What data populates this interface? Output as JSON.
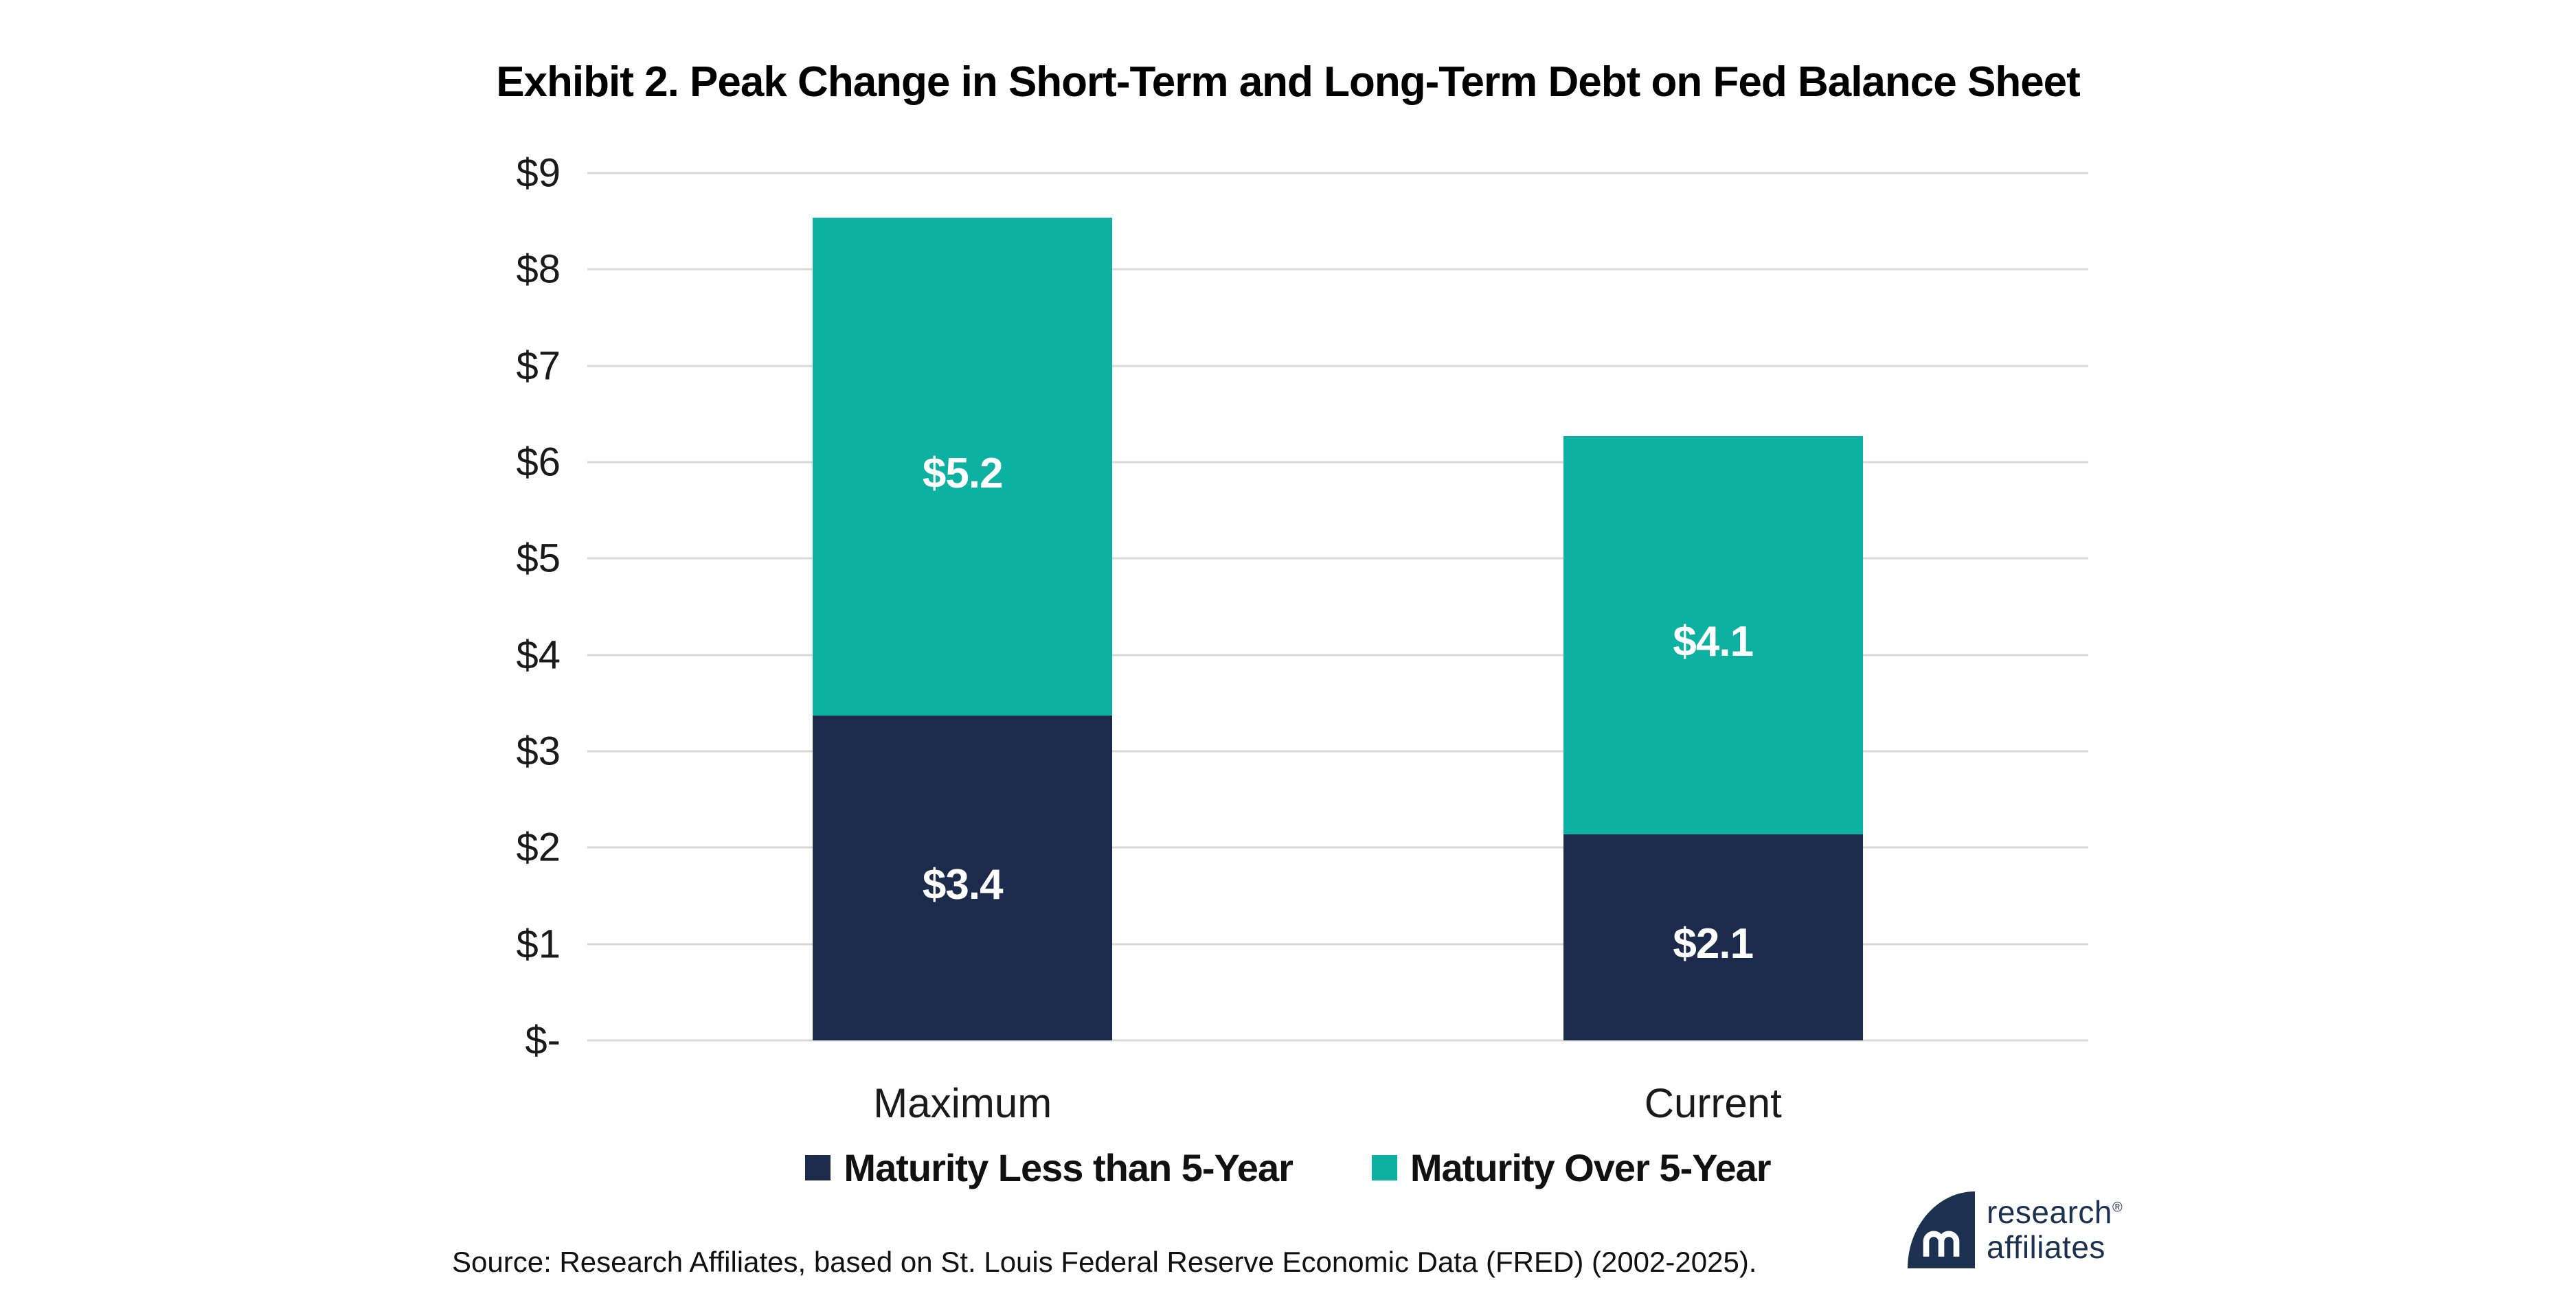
{
  "title": "Exhibit 2. Peak Change in Short-Term and Long-Term Debt on Fed Balance Sheet",
  "chart_data": {
    "type": "bar",
    "stacked": true,
    "title": "Exhibit 2. Peak Change in Short-Term and Long-Term Debt on Fed Balance Sheet",
    "categories": [
      "Maximum",
      "Current"
    ],
    "series": [
      {
        "name": "Maturity Less than 5-Year",
        "color": "#1c2b4c",
        "values": [
          3.37,
          2.14
        ],
        "labels": [
          "$3.4",
          "$2.1"
        ]
      },
      {
        "name": "Maturity Over 5-Year",
        "color": "#0db1a2",
        "values": [
          5.17,
          4.13
        ],
        "labels": [
          "$5.2",
          "$4.1"
        ]
      }
    ],
    "xlabel": "",
    "ylabel": "",
    "ylim": [
      0,
      9
    ],
    "yticks": [
      "$9",
      "$8",
      "$7",
      "$6",
      "$5",
      "$4",
      "$3",
      "$2",
      "$1",
      "$-"
    ],
    "grid": true,
    "legend_position": "bottom"
  },
  "colors": {
    "navy": "#1c2b4c",
    "teal": "#0db1a2",
    "gridline": "#d9d9d9",
    "logo_navy": "#1c3150"
  },
  "source_note": "Source: Research Affiliates, based on St. Louis Federal Reserve Economic Data (FRED) (2002-2025).",
  "logo": {
    "line1": "research",
    "registered_mark": "®",
    "line2": "affiliates"
  }
}
